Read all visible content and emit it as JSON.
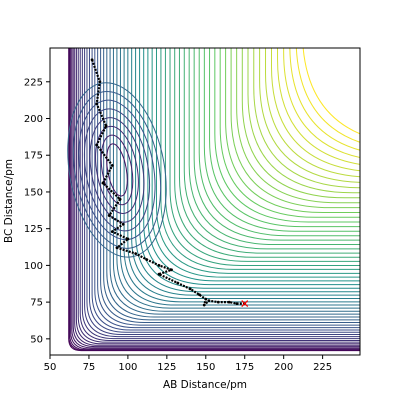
{
  "chart_data": {
    "type": "contour",
    "xlabel": "AB Distance/pm",
    "ylabel": "BC Distance/pm",
    "xlim": [
      50,
      249
    ],
    "ylim": [
      39,
      248
    ],
    "xticks": [
      50,
      75,
      100,
      125,
      150,
      175,
      200,
      225
    ],
    "yticks": [
      50,
      75,
      100,
      125,
      150,
      175,
      200,
      225
    ],
    "grid": false,
    "legend": "none",
    "colormap": [
      "#440154",
      "#3b528b",
      "#21918c",
      "#5ec962",
      "#fde725"
    ],
    "trajectory_color": "#000000",
    "endpoint_marker": {
      "x": 175,
      "y": 74,
      "color": "#ff0000",
      "symbol": "x"
    },
    "trajectory": [
      [
        77,
        240
      ],
      [
        82,
        225
      ],
      [
        80,
        210
      ],
      [
        86,
        195
      ],
      [
        80,
        182
      ],
      [
        90,
        168
      ],
      [
        84,
        156
      ],
      [
        95,
        145
      ],
      [
        88,
        134
      ],
      [
        97,
        128
      ],
      [
        90,
        123
      ],
      [
        100,
        118
      ],
      [
        93,
        112
      ],
      [
        105,
        108
      ],
      [
        112,
        104
      ],
      [
        120,
        100
      ],
      [
        128,
        97
      ],
      [
        120,
        94
      ],
      [
        132,
        88
      ],
      [
        140,
        84
      ],
      [
        146,
        80
      ],
      [
        150,
        77
      ],
      [
        149,
        73
      ],
      [
        152,
        76
      ],
      [
        158,
        75
      ],
      [
        165,
        75
      ],
      [
        170,
        74
      ],
      [
        175,
        74
      ]
    ]
  }
}
